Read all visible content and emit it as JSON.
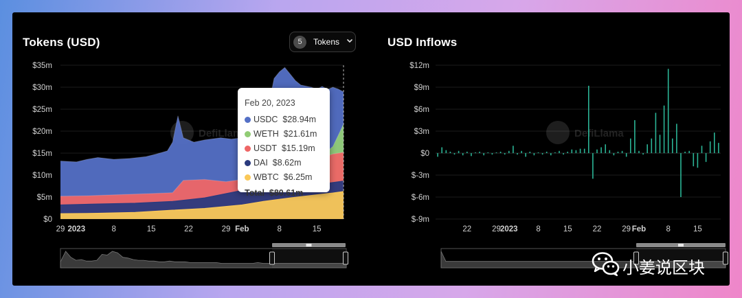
{
  "watermark": {
    "brand": "DefiLlama"
  },
  "left_panel": {
    "title": "Tokens (USD)",
    "tokens_button": {
      "count": "5",
      "label": "Tokens",
      "chevron_icon": "chevron-down-icon"
    }
  },
  "right_panel": {
    "title": "USD Inflows"
  },
  "tooltip": {
    "date": "Feb 20, 2023",
    "rows": [
      {
        "name": "USDC",
        "value": "$28.94m",
        "color": "#5470c6"
      },
      {
        "name": "WETH",
        "value": "$21.61m",
        "color": "#91cc75"
      },
      {
        "name": "USDT",
        "value": "$15.19m",
        "color": "#ee6666"
      },
      {
        "name": "DAI",
        "value": "$8.62m",
        "color": "#2a3a7e"
      },
      {
        "name": "WBTC",
        "value": "$6.25m",
        "color": "#fac858"
      }
    ],
    "total_label": "Total",
    "total_value": "$80.61m"
  },
  "wechat": {
    "text": "小姜说区块",
    "icon": "wechat-icon"
  },
  "chart_data": [
    {
      "type": "area",
      "title": "Tokens (USD)",
      "stacked": false,
      "y_ticks": [
        "$0",
        "$5m",
        "$10m",
        "$15m",
        "$20m",
        "$25m",
        "$30m",
        "$35m"
      ],
      "x_ticks": [
        "29",
        "2023",
        "8",
        "15",
        "22",
        "29",
        "Feb",
        "8",
        "15"
      ],
      "ylim": [
        0,
        35
      ],
      "y_unit": "$m",
      "x_start": "2022-12-29",
      "x_end": "2023-02-20",
      "x_tick_positions": [
        "2022-12-29",
        "2023-01-01",
        "2023-01-08",
        "2023-01-15",
        "2023-01-22",
        "2023-01-29",
        "2023-02-01",
        "2023-02-08",
        "2023-02-15"
      ],
      "series": [
        {
          "name": "USDC",
          "color": "#5470c6",
          "points": [
            [
              "2022-12-29",
              13.2
            ],
            [
              "2023-01-01",
              13.0
            ],
            [
              "2023-01-03",
              13.6
            ],
            [
              "2023-01-05",
              14.0
            ],
            [
              "2023-01-08",
              13.6
            ],
            [
              "2023-01-11",
              13.8
            ],
            [
              "2023-01-14",
              14.2
            ],
            [
              "2023-01-16",
              14.8
            ],
            [
              "2023-01-18",
              15.5
            ],
            [
              "2023-01-19",
              17.5
            ],
            [
              "2023-01-20",
              23.5
            ],
            [
              "2023-01-21",
              18.5
            ],
            [
              "2023-01-23",
              17.5
            ],
            [
              "2023-01-25",
              18.0
            ],
            [
              "2023-01-28",
              18.5
            ],
            [
              "2023-01-30",
              18.2
            ],
            [
              "2023-02-01",
              18.5
            ],
            [
              "2023-02-03",
              19.5
            ],
            [
              "2023-02-05",
              22.5
            ],
            [
              "2023-02-06",
              26.0
            ],
            [
              "2023-02-07",
              32.0
            ],
            [
              "2023-02-08",
              33.5
            ],
            [
              "2023-02-09",
              34.5
            ],
            [
              "2023-02-10",
              33.0
            ],
            [
              "2023-02-11",
              31.5
            ],
            [
              "2023-02-12",
              30.5
            ],
            [
              "2023-02-14",
              30.0
            ],
            [
              "2023-02-15",
              29.5
            ],
            [
              "2023-02-16",
              30.2
            ],
            [
              "2023-02-17",
              29.5
            ],
            [
              "2023-02-18",
              30.0
            ],
            [
              "2023-02-19",
              29.6
            ],
            [
              "2023-02-20",
              28.94
            ]
          ]
        },
        {
          "name": "WETH",
          "color": "#91cc75",
          "points": [
            [
              "2023-02-14",
              15.0
            ],
            [
              "2023-02-17",
              15.5
            ],
            [
              "2023-02-18",
              16.5
            ],
            [
              "2023-02-19",
              19.0
            ],
            [
              "2023-02-20",
              21.61
            ]
          ]
        },
        {
          "name": "USDT",
          "color": "#ee6666",
          "points": [
            [
              "2022-12-29",
              5.2
            ],
            [
              "2023-01-03",
              5.3
            ],
            [
              "2023-01-08",
              5.5
            ],
            [
              "2023-01-15",
              5.8
            ],
            [
              "2023-01-19",
              6.0
            ],
            [
              "2023-01-21",
              8.8
            ],
            [
              "2023-01-25",
              9.0
            ],
            [
              "2023-01-29",
              8.5
            ],
            [
              "2023-02-01",
              9.0
            ],
            [
              "2023-02-03",
              10.2
            ],
            [
              "2023-02-06",
              11.5
            ],
            [
              "2023-02-08",
              12.2
            ],
            [
              "2023-02-10",
              13.0
            ],
            [
              "2023-02-13",
              13.5
            ],
            [
              "2023-02-16",
              14.0
            ],
            [
              "2023-02-18",
              14.8
            ],
            [
              "2023-02-20",
              15.19
            ]
          ]
        },
        {
          "name": "DAI",
          "color": "#2a3a7e",
          "points": [
            [
              "2022-12-29",
              3.2
            ],
            [
              "2023-01-05",
              3.4
            ],
            [
              "2023-01-12",
              3.6
            ],
            [
              "2023-01-19",
              4.0
            ],
            [
              "2023-01-25",
              4.8
            ],
            [
              "2023-02-01",
              6.5
            ],
            [
              "2023-02-05",
              7.2
            ],
            [
              "2023-02-10",
              7.5
            ],
            [
              "2023-02-15",
              7.8
            ],
            [
              "2023-02-18",
              8.3
            ],
            [
              "2023-02-20",
              8.62
            ]
          ]
        },
        {
          "name": "WBTC",
          "color": "#fac858",
          "points": [
            [
              "2022-12-29",
              1.2
            ],
            [
              "2023-01-05",
              1.3
            ],
            [
              "2023-01-12",
              1.5
            ],
            [
              "2023-01-19",
              2.0
            ],
            [
              "2023-01-25",
              2.4
            ],
            [
              "2023-02-01",
              3.2
            ],
            [
              "2023-02-05",
              4.0
            ],
            [
              "2023-02-10",
              4.8
            ],
            [
              "2023-02-15",
              5.5
            ],
            [
              "2023-02-18",
              5.9
            ],
            [
              "2023-02-20",
              6.25
            ]
          ]
        }
      ]
    },
    {
      "type": "bar",
      "title": "USD Inflows",
      "y_ticks": [
        "$-9m",
        "$-6m",
        "$-3m",
        "$0",
        "$3m",
        "$6m",
        "$9m",
        "$12m"
      ],
      "x_ticks": [
        "22",
        "29",
        "2023",
        "8",
        "15",
        "22",
        "29",
        "Feb",
        "8",
        "15"
      ],
      "ylim": [
        -9,
        12
      ],
      "y_unit": "$m",
      "x_start": "2022-12-15",
      "x_end": "2023-02-20",
      "x_tick_positions": [
        "2022-12-22",
        "2022-12-29",
        "2023-01-01",
        "2023-01-08",
        "2023-01-15",
        "2023-01-22",
        "2023-01-29",
        "2023-02-01",
        "2023-02-08",
        "2023-02-15"
      ],
      "bars": [
        [
          "2022-12-15",
          -0.5
        ],
        [
          "2022-12-16",
          0.8
        ],
        [
          "2022-12-17",
          0.4
        ],
        [
          "2022-12-18",
          0.2
        ],
        [
          "2022-12-19",
          -0.2
        ],
        [
          "2022-12-20",
          0.3
        ],
        [
          "2022-12-21",
          -0.3
        ],
        [
          "2022-12-22",
          0.2
        ],
        [
          "2022-12-23",
          -0.4
        ],
        [
          "2022-12-24",
          0.1
        ],
        [
          "2022-12-25",
          0.2
        ],
        [
          "2022-12-26",
          -0.3
        ],
        [
          "2022-12-27",
          0.1
        ],
        [
          "2022-12-28",
          -0.2
        ],
        [
          "2022-12-29",
          0.1
        ],
        [
          "2022-12-30",
          0.2
        ],
        [
          "2022-12-31",
          -0.2
        ],
        [
          "2023-01-01",
          0.3
        ],
        [
          "2023-01-02",
          1.0
        ],
        [
          "2023-01-03",
          -0.2
        ],
        [
          "2023-01-04",
          0.3
        ],
        [
          "2023-01-05",
          -0.5
        ],
        [
          "2023-01-06",
          0.2
        ],
        [
          "2023-01-07",
          -0.3
        ],
        [
          "2023-01-08",
          0.1
        ],
        [
          "2023-01-09",
          -0.2
        ],
        [
          "2023-01-10",
          0.2
        ],
        [
          "2023-01-11",
          -0.3
        ],
        [
          "2023-01-12",
          0.1
        ],
        [
          "2023-01-13",
          0.3
        ],
        [
          "2023-01-14",
          -0.2
        ],
        [
          "2023-01-15",
          0.2
        ],
        [
          "2023-01-16",
          0.5
        ],
        [
          "2023-01-17",
          0.4
        ],
        [
          "2023-01-18",
          0.6
        ],
        [
          "2023-01-19",
          0.6
        ],
        [
          "2023-01-20",
          9.2
        ],
        [
          "2023-01-21",
          -3.5
        ],
        [
          "2023-01-22",
          0.5
        ],
        [
          "2023-01-23",
          0.8
        ],
        [
          "2023-01-24",
          1.2
        ],
        [
          "2023-01-25",
          0.4
        ],
        [
          "2023-01-26",
          -0.3
        ],
        [
          "2023-01-27",
          0.2
        ],
        [
          "2023-01-28",
          0.3
        ],
        [
          "2023-01-29",
          -0.5
        ],
        [
          "2023-01-30",
          2.0
        ],
        [
          "2023-01-31",
          4.5
        ],
        [
          "2023-02-01",
          0.3
        ],
        [
          "2023-02-02",
          -0.2
        ],
        [
          "2023-02-03",
          1.2
        ],
        [
          "2023-02-04",
          2.0
        ],
        [
          "2023-02-05",
          5.5
        ],
        [
          "2023-02-06",
          2.5
        ],
        [
          "2023-02-07",
          6.5
        ],
        [
          "2023-02-08",
          11.5
        ],
        [
          "2023-02-09",
          2.0
        ],
        [
          "2023-02-10",
          4.0
        ],
        [
          "2023-02-11",
          -6.0
        ],
        [
          "2023-02-12",
          0.2
        ],
        [
          "2023-02-13",
          0.3
        ],
        [
          "2023-02-14",
          -1.8
        ],
        [
          "2023-02-15",
          -2.0
        ],
        [
          "2023-02-16",
          1.0
        ],
        [
          "2023-02-17",
          -1.2
        ],
        [
          "2023-02-18",
          1.6
        ],
        [
          "2023-02-19",
          2.8
        ],
        [
          "2023-02-20",
          1.4
        ]
      ]
    }
  ],
  "left_navigator": {
    "mini_series": [
      8,
      22,
      14,
      10,
      11,
      9,
      9,
      10,
      18,
      17,
      22,
      20,
      14,
      13,
      11,
      10,
      10,
      9,
      9,
      8,
      8,
      9,
      8,
      8,
      8,
      7,
      7,
      7,
      7,
      7,
      7,
      6,
      6,
      6,
      6,
      6,
      6,
      6,
      7,
      6,
      6,
      6,
      6,
      6,
      6,
      6,
      6,
      6,
      6,
      6,
      6,
      6,
      6,
      6,
      6,
      6
    ]
  },
  "right_navigator": {
    "mini_series": [
      18,
      7,
      7,
      7,
      7,
      7,
      7,
      7,
      7,
      7,
      7,
      7,
      7,
      7,
      7,
      7,
      7,
      7,
      7,
      7,
      7,
      7,
      7,
      7,
      7,
      7,
      7,
      7,
      7,
      7,
      7,
      7,
      7,
      7,
      7,
      7,
      7,
      7,
      7,
      7,
      7,
      7,
      7,
      7,
      7,
      7,
      7,
      7,
      7,
      7,
      7,
      7,
      7,
      7,
      7,
      7,
      7,
      7,
      7,
      7
    ]
  }
}
